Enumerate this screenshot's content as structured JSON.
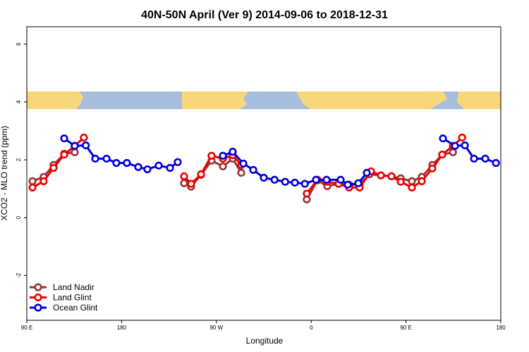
{
  "chart_data": {
    "type": "line",
    "title": "40N-50N April (Ver 9)   2014-09-06 to 2018-12-31",
    "x_label": "Longitude",
    "y_label": "XCO2 - MLO trend (ppm)",
    "xlim": [
      90,
      540
    ],
    "ylim": [
      -3.55,
      6.6
    ],
    "xticks": [
      {
        "value": 90,
        "label": "90 E"
      },
      {
        "value": 180,
        "label": "180"
      },
      {
        "value": 270,
        "label": "90 W"
      },
      {
        "value": 360,
        "label": "0"
      },
      {
        "value": 450,
        "label": "90 E"
      },
      {
        "value": 540,
        "label": "180"
      }
    ],
    "yticks": [
      -2,
      0,
      2,
      4,
      6
    ],
    "legend": "bottom-left",
    "series": [
      {
        "name": "Land Nadir",
        "color": "#993333",
        "x": [
          95.4,
          106,
          115.4,
          125.5,
          135.5,
          null,
          239.3,
          246,
          255.4,
          265.4,
          276.2,
          285.5,
          293.6,
          null,
          355.8,
          365.9,
          375.3,
          386,
          396,
          406,
          415.4,
          426.2,
          436.2,
          445,
          455.6,
          465,
          475,
          484.4,
          494.6
        ],
        "values": [
          1.26,
          1.41,
          1.82,
          2.21,
          2.26,
          null,
          1.19,
          1.07,
          1.48,
          1.97,
          1.77,
          2.04,
          1.55,
          null,
          0.63,
          1.29,
          1.09,
          1.17,
          1.14,
          1.14,
          1.5,
          1.46,
          1.43,
          1.36,
          1.26,
          1.41,
          1.82,
          2.18,
          2.26
        ]
      },
      {
        "name": "Land Glint",
        "color": "#ee0000",
        "x": [
          95.4,
          106,
          115.4,
          125.5,
          135.5,
          144.2,
          null,
          239.3,
          246,
          255.4,
          265.4,
          276.2,
          285.5,
          293.6,
          null,
          355.8,
          365.9,
          375.3,
          386,
          396,
          406,
          416.8,
          426.2,
          436.2,
          445,
          455.6,
          465,
          475,
          484.4,
          494.6,
          503.3
        ],
        "values": [
          1.04,
          1.26,
          1.72,
          2.18,
          2.48,
          2.77,
          null,
          1.43,
          1.17,
          1.5,
          2.14,
          2.04,
          2.16,
          1.82,
          null,
          0.83,
          1.31,
          1.24,
          1.17,
          1.04,
          1.04,
          1.6,
          1.46,
          1.43,
          1.24,
          1.04,
          1.26,
          1.7,
          2.18,
          2.48,
          2.77
        ]
      },
      {
        "name": "Ocean Glint",
        "color": "#0000dd",
        "x": [
          125.5,
          135.5,
          146,
          155,
          165.7,
          175,
          185,
          195.8,
          204.5,
          215.2,
          226,
          233.3,
          null,
          276.2,
          285.5,
          295.6,
          305,
          315,
          325.2,
          335.3,
          344.5,
          354,
          364.6,
          374.6,
          388,
          394.7,
          404.7,
          412.8,
          null,
          485.1,
          496.5,
          505.9,
          514.6,
          525.3,
          535.4
        ],
        "values": [
          2.74,
          2.48,
          2.5,
          2.04,
          2.04,
          1.89,
          1.89,
          1.75,
          1.67,
          1.8,
          1.72,
          1.92,
          null,
          2.14,
          2.28,
          1.87,
          1.65,
          1.38,
          1.31,
          1.24,
          1.21,
          1.17,
          1.31,
          1.31,
          1.31,
          1.14,
          1.19,
          1.55,
          null,
          2.74,
          2.48,
          2.5,
          2.04,
          2.04,
          1.89
        ]
      }
    ]
  }
}
